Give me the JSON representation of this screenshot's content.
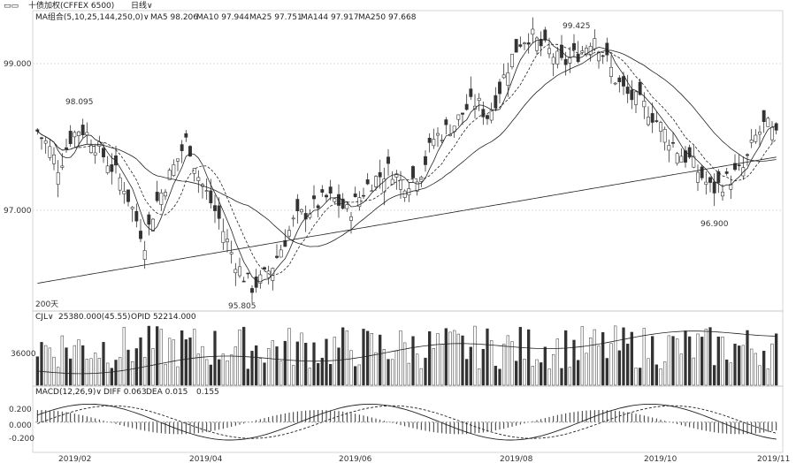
{
  "header": {
    "title": "十债加权(CFFEX 6500)",
    "period": "日线∨",
    "ma_group": "MA组合(5,10,25,144,250,0)∨",
    "ma5": "MA5 98.206",
    "ma10": "MA10 97.944",
    "ma25": "MA25 97.751",
    "ma144": "MA144 97.917",
    "ma250": "MA250 97.668"
  },
  "price_axis": {
    "ticks": [
      "99.000",
      "97.000"
    ]
  },
  "annotations": {
    "high_left": "98.095",
    "low_mid": "95.805",
    "high_peak": "99.425",
    "low_right": "96.900",
    "ma_days": "200天"
  },
  "volume": {
    "label": "CJL∨",
    "value": "25380.000(45.55)",
    "opid": "OPID 52214.000",
    "tick": "36000"
  },
  "macd": {
    "label": "MACD(12,26,9)∨",
    "diff": "DIFF 0.063",
    "dea": "DEA 0.015",
    "macd": "0.155",
    "ticks": [
      "0.200",
      "0.000",
      "-0.200"
    ]
  },
  "chart_data": {
    "type": "candlestick",
    "xlabels": [
      "2019/02",
      "2019/04",
      "2019/06",
      "2019/08",
      "2019/10",
      "2019/11"
    ],
    "price_range": [
      95.6,
      99.6
    ],
    "close_series": [
      98.0,
      97.8,
      97.5,
      97.9,
      98.05,
      97.9,
      97.7,
      97.5,
      97.3,
      96.9,
      96.5,
      97.0,
      97.3,
      97.6,
      97.9,
      97.4,
      97.1,
      96.8,
      96.4,
      96.1,
      95.9,
      96.0,
      96.2,
      96.5,
      96.8,
      96.9,
      97.0,
      97.1,
      97.05,
      96.9,
      97.1,
      97.3,
      97.4,
      97.5,
      97.3,
      97.35,
      97.5,
      97.9,
      98.0,
      98.1,
      98.3,
      98.4,
      98.2,
      98.5,
      98.9,
      99.2,
      99.3,
      99.15,
      99.05,
      98.9,
      99.0,
      99.1,
      99.3,
      99.0,
      98.7,
      98.5,
      98.4,
      98.3,
      98.1,
      97.9,
      97.7,
      97.6,
      97.4,
      97.2,
      97.3,
      97.4,
      97.5,
      97.9,
      98.1,
      97.9
    ],
    "volume_range": [
      0,
      80000
    ],
    "macd_range": [
      -0.35,
      0.3
    ]
  }
}
